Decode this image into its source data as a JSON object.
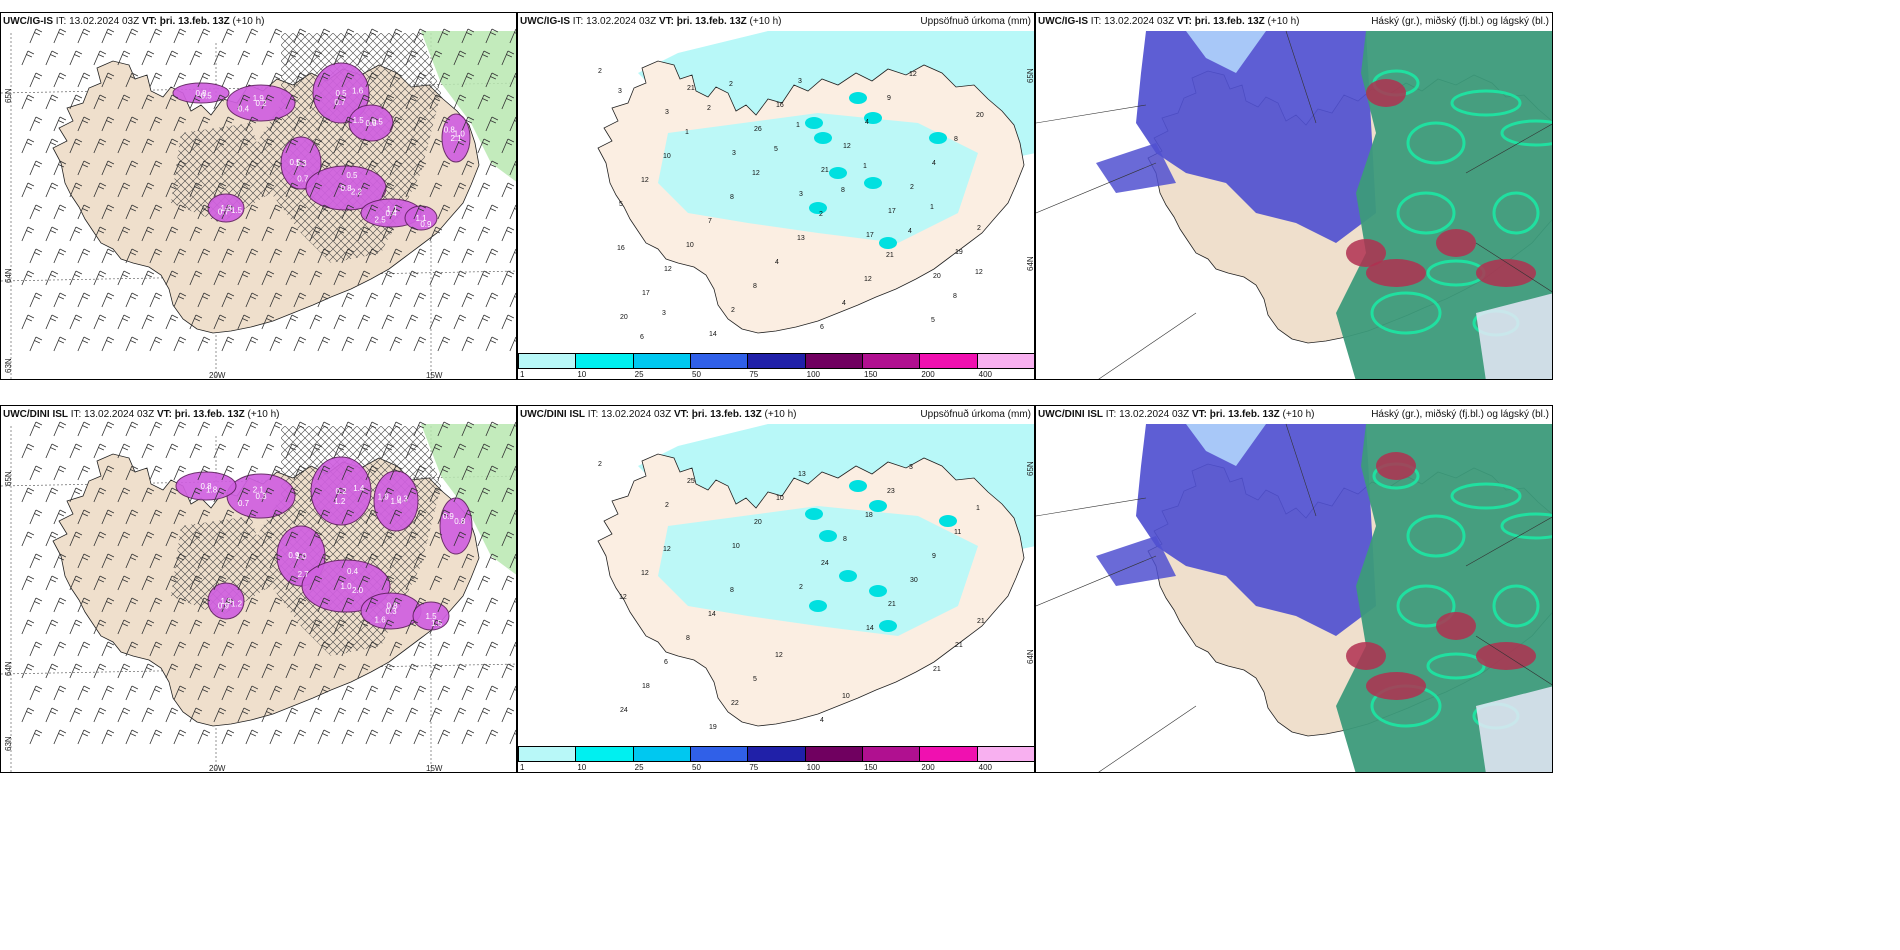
{
  "panels": {
    "p1": {
      "title_left": "UWC/IG-IS",
      "title_it": " IT: 13.02.2024 03Z ",
      "title_vt": "VT: þri. 13.feb. 13Z",
      "title_tail": " (+10 h)",
      "axis": {
        "lat_top": "65N",
        "lat_mid": "64N",
        "lat_bot": "63N",
        "lon_left": "20W",
        "lon_right": "15W"
      }
    },
    "p2": {
      "title_left": "UWC/IG-IS",
      "title_it": " IT: 13.02.2024 03Z ",
      "title_vt": "VT: þri. 13.feb. 13Z",
      "title_tail": " (+10 h)",
      "right_title": "Uppsöfnuð úrkoma (mm)",
      "axis": {
        "lat_top": "65N",
        "lat_mid": "64N"
      }
    },
    "p3": {
      "title_left": "UWC/IG-IS",
      "title_it": " IT: 13.02.2024 03Z ",
      "title_vt": "VT: þri. 13.feb. 13Z",
      "title_tail": " (+10 h)",
      "right_title": "Háský (gr.), miðský (fj.bl.) og lágský (bl.)"
    },
    "p4": {
      "title_left": "UWC/DINI ISL",
      "title_it": " IT: 13.02.2024 03Z ",
      "title_vt": "VT: þri. 13.feb. 13Z",
      "title_tail": " (+10 h)",
      "axis": {
        "lat_top": "65N",
        "lat_mid": "64N",
        "lat_bot": "63N",
        "lon_left": "20W",
        "lon_right": "15W"
      }
    },
    "p5": {
      "title_left": "UWC/DINI ISL",
      "title_it": " IT: 13.02.2024 03Z ",
      "title_vt": "VT: þri. 13.feb. 13Z",
      "title_tail": " (+10 h)",
      "right_title": "Uppsöfnuð úrkoma (mm)",
      "axis": {
        "lat_top": "65N",
        "lat_mid": "64N"
      }
    },
    "p6": {
      "title_left": "UWC/DINI ISL",
      "title_it": " IT: 13.02.2024 03Z ",
      "title_vt": "VT: þri. 13.feb. 13Z",
      "title_tail": " (+10 h)",
      "right_title": "Háský (gr.), miðský (fj.bl.) og lágský (bl.)"
    }
  },
  "legend": {
    "colors": [
      "#b8f8f8",
      "#00f0f0",
      "#00c8f0",
      "#3060e8",
      "#2020a8",
      "#700060",
      "#b01090",
      "#f010b0",
      "#f8b0f0"
    ],
    "ticks": [
      "1",
      "10",
      "25",
      "50",
      "75",
      "100",
      "150",
      "200",
      "400"
    ]
  },
  "precip_labels_top": [
    "2",
    "3",
    "3",
    "3",
    "17",
    "20",
    "20",
    "21",
    "26",
    "21",
    "17",
    "19",
    "17",
    "14",
    "16",
    "12",
    "2",
    "2",
    "12",
    "2",
    "3",
    "4",
    "4",
    "5",
    "10",
    "8",
    "6",
    "9",
    "8",
    "12",
    "7",
    "4",
    "4",
    "12",
    "20",
    "10",
    "8",
    "13",
    "12",
    "5",
    "3",
    "1",
    "12",
    "2",
    "21",
    "8",
    "6",
    "2",
    "5",
    "8",
    "4",
    "12",
    "3",
    "2",
    "1",
    "1",
    "1",
    "16"
  ],
  "precip_labels_bottom": [
    "2",
    "2",
    "10",
    "2",
    "14",
    "21",
    "24",
    "25",
    "20",
    "24",
    "21",
    "21",
    "18",
    "19",
    "10",
    "8",
    "30",
    "21",
    "6",
    "22",
    "13",
    "18",
    "9",
    "12",
    "8",
    "5",
    "4",
    "23",
    "11",
    "12",
    "14",
    "12",
    "10",
    "3",
    "1",
    "12",
    "8"
  ],
  "wind_values_top": [
    "0.2",
    "0.7",
    "1.5",
    "1.3",
    "2.2",
    "2.5",
    "1.3",
    "1.0",
    "0.9",
    "0.8",
    "1.9",
    "1.6",
    "0.6",
    "0.5",
    "0.5",
    "0.4",
    "0.7",
    "0.8",
    "1.1",
    "0.5",
    "0.4",
    "0.5",
    "0.5",
    "0.7",
    "0.8",
    "1.1",
    "1.5",
    "2.1"
  ],
  "wind_values_bottom": [
    "0.3",
    "1.2",
    "1.9",
    "1.0",
    "2.0",
    "1.6",
    "1.9",
    "0.8",
    "1.5",
    "0.8",
    "2.1",
    "1.4",
    "1.4",
    "0.9",
    "0.4",
    "0.3",
    "0.9",
    "0.9",
    "1.5",
    "1.8",
    "0.7",
    "0.2",
    "0.3",
    "2.7",
    "1.0",
    "0.8",
    "1.2"
  ]
}
